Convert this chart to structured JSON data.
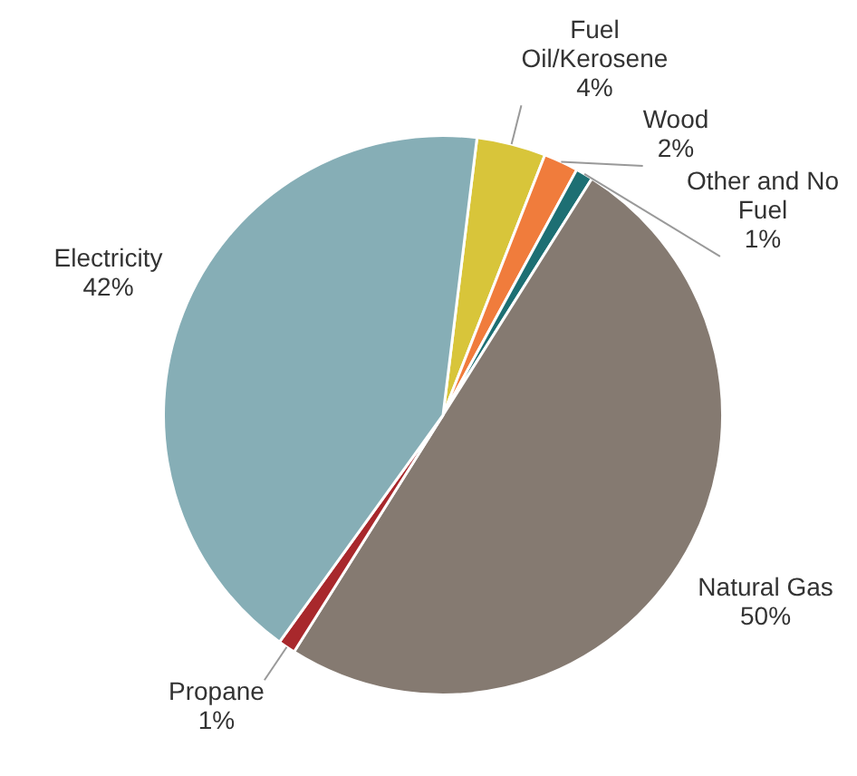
{
  "chart_data": {
    "type": "pie",
    "categories": [
      "Fuel Oil/Kerosene",
      "Wood",
      "Other and No Fuel",
      "Natural Gas",
      "Propane",
      "Electricity"
    ],
    "values": [
      4,
      2,
      1,
      50,
      1,
      42
    ],
    "colors": [
      "#d8c53a",
      "#f07c3c",
      "#1d6f73",
      "#857a71",
      "#a8282c",
      "#86aeb6"
    ],
    "value_labels": [
      "4%",
      "2%",
      "1%",
      "50%",
      "1%",
      "42%"
    ],
    "legend": false
  }
}
